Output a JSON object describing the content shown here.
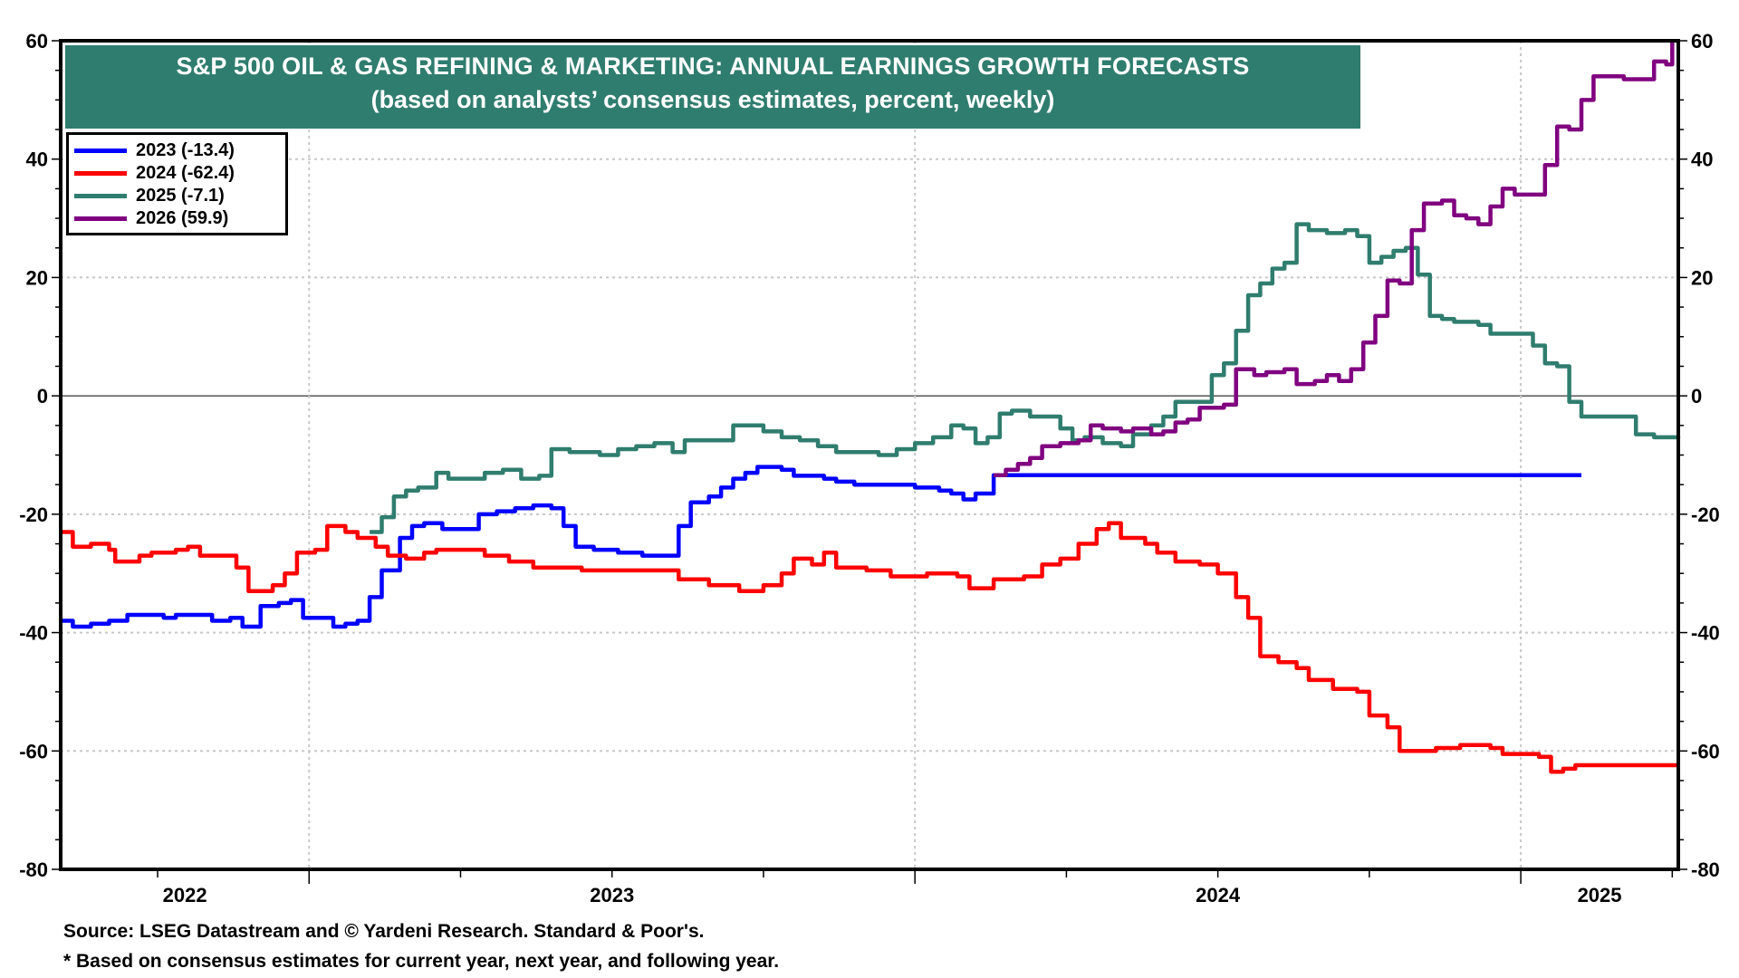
{
  "chart_data": {
    "type": "line",
    "title": "S&P 500 OIL & GAS REFINING & MARKETING: ANNUAL EARNINGS GROWTH FORECASTS",
    "subtitle": "(based on analysts’ consensus estimates, percent, weekly)",
    "xlabel": "",
    "ylabel": "",
    "ylim": [
      -80,
      60
    ],
    "yticks": [
      60,
      40,
      20,
      0,
      -20,
      -40,
      -60,
      -80
    ],
    "xlim": [
      2022.59,
      2025.26
    ],
    "xtick_labels": [
      {
        "label": "2022",
        "x": 2022.795
      },
      {
        "label": "2023",
        "x": 2023.5
      },
      {
        "label": "2024",
        "x": 2024.5
      },
      {
        "label": "2025",
        "x": 2025.13
      }
    ],
    "grid": true,
    "legend_position": "top-left",
    "series": [
      {
        "name": "2023 (-13.4)",
        "color": "#0000ff",
        "points": [
          [
            2022.59,
            -38
          ],
          [
            2022.61,
            -39
          ],
          [
            2022.64,
            -38.5
          ],
          [
            2022.67,
            -38
          ],
          [
            2022.7,
            -37
          ],
          [
            2022.74,
            -37
          ],
          [
            2022.76,
            -37.5
          ],
          [
            2022.78,
            -37
          ],
          [
            2022.82,
            -37
          ],
          [
            2022.84,
            -38
          ],
          [
            2022.87,
            -37.5
          ],
          [
            2022.89,
            -39
          ],
          [
            2022.92,
            -35.5
          ],
          [
            2022.95,
            -35
          ],
          [
            2022.97,
            -34.5
          ],
          [
            2022.99,
            -37.5
          ],
          [
            2023.03,
            -37.5
          ],
          [
            2023.04,
            -39
          ],
          [
            2023.06,
            -38.5
          ],
          [
            2023.08,
            -38
          ],
          [
            2023.1,
            -34
          ],
          [
            2023.12,
            -29.5
          ],
          [
            2023.15,
            -24
          ],
          [
            2023.17,
            -22
          ],
          [
            2023.19,
            -21.5
          ],
          [
            2023.22,
            -22.5
          ],
          [
            2023.26,
            -22.5
          ],
          [
            2023.28,
            -20
          ],
          [
            2023.31,
            -19.5
          ],
          [
            2023.34,
            -19
          ],
          [
            2023.37,
            -18.5
          ],
          [
            2023.4,
            -19
          ],
          [
            2023.42,
            -22
          ],
          [
            2023.44,
            -25.5
          ],
          [
            2023.47,
            -26
          ],
          [
            2023.51,
            -26.5
          ],
          [
            2023.55,
            -27
          ],
          [
            2023.59,
            -27
          ],
          [
            2023.61,
            -22
          ],
          [
            2023.63,
            -18
          ],
          [
            2023.66,
            -17
          ],
          [
            2023.68,
            -15.5
          ],
          [
            2023.7,
            -14
          ],
          [
            2023.72,
            -13
          ],
          [
            2023.74,
            -12
          ],
          [
            2023.78,
            -12.5
          ],
          [
            2023.8,
            -13.5
          ],
          [
            2023.85,
            -14
          ],
          [
            2023.87,
            -14.5
          ],
          [
            2023.9,
            -15
          ],
          [
            2023.96,
            -15
          ],
          [
            2024.0,
            -15.5
          ],
          [
            2024.04,
            -16
          ],
          [
            2024.06,
            -16.5
          ],
          [
            2024.08,
            -17.5
          ],
          [
            2024.1,
            -16.5
          ],
          [
            2024.13,
            -13.4
          ],
          [
            2024.95,
            -13.4
          ],
          [
            2025.1,
            -13.4
          ]
        ]
      },
      {
        "name": "2024 (-62.4)",
        "color": "#ff0000",
        "points": [
          [
            2022.59,
            -23
          ],
          [
            2022.61,
            -25.5
          ],
          [
            2022.64,
            -25
          ],
          [
            2022.67,
            -26
          ],
          [
            2022.68,
            -28
          ],
          [
            2022.72,
            -27
          ],
          [
            2022.74,
            -26.5
          ],
          [
            2022.78,
            -26
          ],
          [
            2022.8,
            -25.5
          ],
          [
            2022.82,
            -27
          ],
          [
            2022.86,
            -27
          ],
          [
            2022.88,
            -29
          ],
          [
            2022.9,
            -33
          ],
          [
            2022.94,
            -32
          ],
          [
            2022.96,
            -30
          ],
          [
            2022.98,
            -26.5
          ],
          [
            2023.01,
            -26
          ],
          [
            2023.03,
            -22
          ],
          [
            2023.06,
            -23
          ],
          [
            2023.08,
            -24
          ],
          [
            2023.11,
            -25.5
          ],
          [
            2023.13,
            -27
          ],
          [
            2023.16,
            -27.5
          ],
          [
            2023.19,
            -26.5
          ],
          [
            2023.21,
            -26
          ],
          [
            2023.26,
            -26
          ],
          [
            2023.29,
            -27
          ],
          [
            2023.33,
            -28
          ],
          [
            2023.37,
            -29
          ],
          [
            2023.41,
            -29
          ],
          [
            2023.45,
            -29.5
          ],
          [
            2023.5,
            -29.5
          ],
          [
            2023.56,
            -29.5
          ],
          [
            2023.61,
            -31
          ],
          [
            2023.66,
            -32
          ],
          [
            2023.71,
            -33
          ],
          [
            2023.75,
            -32
          ],
          [
            2023.78,
            -30
          ],
          [
            2023.8,
            -27.5
          ],
          [
            2023.83,
            -28.5
          ],
          [
            2023.85,
            -26.5
          ],
          [
            2023.87,
            -29
          ],
          [
            2023.92,
            -29.5
          ],
          [
            2023.96,
            -30.5
          ],
          [
            2024.02,
            -30
          ],
          [
            2024.07,
            -30.5
          ],
          [
            2024.09,
            -32.5
          ],
          [
            2024.13,
            -31
          ],
          [
            2024.18,
            -30.5
          ],
          [
            2024.21,
            -28.5
          ],
          [
            2024.24,
            -27.5
          ],
          [
            2024.27,
            -25
          ],
          [
            2024.3,
            -22.5
          ],
          [
            2024.32,
            -21.5
          ],
          [
            2024.34,
            -24
          ],
          [
            2024.38,
            -25
          ],
          [
            2024.4,
            -26.5
          ],
          [
            2024.43,
            -28
          ],
          [
            2024.47,
            -28.5
          ],
          [
            2024.5,
            -30
          ],
          [
            2024.53,
            -34
          ],
          [
            2024.55,
            -37.5
          ],
          [
            2024.57,
            -44
          ],
          [
            2024.6,
            -45
          ],
          [
            2024.63,
            -46
          ],
          [
            2024.65,
            -48
          ],
          [
            2024.69,
            -49.5
          ],
          [
            2024.73,
            -50
          ],
          [
            2024.75,
            -54
          ],
          [
            2024.78,
            -56
          ],
          [
            2024.8,
            -60
          ],
          [
            2024.86,
            -59.5
          ],
          [
            2024.9,
            -59
          ],
          [
            2024.95,
            -59.5
          ],
          [
            2024.97,
            -60.5
          ],
          [
            2025.03,
            -61
          ],
          [
            2025.05,
            -63.5
          ],
          [
            2025.07,
            -63
          ],
          [
            2025.09,
            -62.4
          ],
          [
            2025.26,
            -62.4
          ]
        ]
      },
      {
        "name": "2025 (-7.1)",
        "color": "#2f7d6f",
        "points": [
          [
            2023.1,
            -23
          ],
          [
            2023.12,
            -20.5
          ],
          [
            2023.14,
            -17
          ],
          [
            2023.16,
            -16
          ],
          [
            2023.18,
            -15.5
          ],
          [
            2023.21,
            -13
          ],
          [
            2023.23,
            -14
          ],
          [
            2023.27,
            -14
          ],
          [
            2023.29,
            -13
          ],
          [
            2023.32,
            -12.5
          ],
          [
            2023.35,
            -14
          ],
          [
            2023.38,
            -13.5
          ],
          [
            2023.4,
            -9
          ],
          [
            2023.43,
            -9.5
          ],
          [
            2023.48,
            -10
          ],
          [
            2023.51,
            -9
          ],
          [
            2023.54,
            -8.5
          ],
          [
            2023.57,
            -8
          ],
          [
            2023.6,
            -9.5
          ],
          [
            2023.62,
            -7.5
          ],
          [
            2023.68,
            -7.5
          ],
          [
            2023.7,
            -5
          ],
          [
            2023.73,
            -5
          ],
          [
            2023.75,
            -6
          ],
          [
            2023.78,
            -7
          ],
          [
            2023.81,
            -7.5
          ],
          [
            2023.84,
            -8.5
          ],
          [
            2023.87,
            -9.5
          ],
          [
            2023.91,
            -9.5
          ],
          [
            2023.94,
            -10
          ],
          [
            2023.97,
            -9
          ],
          [
            2024.0,
            -8
          ],
          [
            2024.03,
            -7
          ],
          [
            2024.06,
            -5
          ],
          [
            2024.08,
            -5.5
          ],
          [
            2024.1,
            -8
          ],
          [
            2024.12,
            -7
          ],
          [
            2024.14,
            -3
          ],
          [
            2024.16,
            -2.5
          ],
          [
            2024.19,
            -3.5
          ],
          [
            2024.22,
            -3.5
          ],
          [
            2024.24,
            -5.5
          ],
          [
            2024.26,
            -7.5
          ],
          [
            2024.28,
            -7
          ],
          [
            2024.31,
            -8
          ],
          [
            2024.34,
            -8.5
          ],
          [
            2024.36,
            -6.5
          ],
          [
            2024.39,
            -5
          ],
          [
            2024.41,
            -3.5
          ],
          [
            2024.43,
            -1
          ],
          [
            2024.47,
            -1
          ],
          [
            2024.49,
            3.5
          ],
          [
            2024.51,
            5.5
          ],
          [
            2024.53,
            11
          ],
          [
            2024.55,
            17
          ],
          [
            2024.57,
            19
          ],
          [
            2024.59,
            21.5
          ],
          [
            2024.61,
            22.5
          ],
          [
            2024.63,
            29
          ],
          [
            2024.65,
            28
          ],
          [
            2024.68,
            27.5
          ],
          [
            2024.71,
            28
          ],
          [
            2024.73,
            27
          ],
          [
            2024.75,
            22.5
          ],
          [
            2024.77,
            23.5
          ],
          [
            2024.79,
            24.5
          ],
          [
            2024.81,
            25
          ],
          [
            2024.83,
            20.5
          ],
          [
            2024.85,
            13.5
          ],
          [
            2024.87,
            13
          ],
          [
            2024.89,
            12.5
          ],
          [
            2024.91,
            12.5
          ],
          [
            2024.93,
            12
          ],
          [
            2024.95,
            10.5
          ],
          [
            2024.98,
            10.5
          ],
          [
            2025.0,
            10.5
          ],
          [
            2025.02,
            8.5
          ],
          [
            2025.04,
            5.5
          ],
          [
            2025.06,
            5
          ],
          [
            2025.08,
            -1
          ],
          [
            2025.1,
            -3.5
          ],
          [
            2025.16,
            -3.5
          ],
          [
            2025.19,
            -6.5
          ],
          [
            2025.22,
            -7
          ],
          [
            2025.26,
            -7.1
          ]
        ]
      },
      {
        "name": "2026 (59.9)",
        "color": "#800080",
        "points": [
          [
            2024.13,
            -13.4
          ],
          [
            2024.15,
            -12.5
          ],
          [
            2024.17,
            -11.5
          ],
          [
            2024.19,
            -10.5
          ],
          [
            2024.21,
            -8.5
          ],
          [
            2024.24,
            -8
          ],
          [
            2024.27,
            -7.5
          ],
          [
            2024.29,
            -5
          ],
          [
            2024.31,
            -5.5
          ],
          [
            2024.34,
            -6
          ],
          [
            2024.36,
            -5.5
          ],
          [
            2024.39,
            -6.5
          ],
          [
            2024.41,
            -6
          ],
          [
            2024.43,
            -4.5
          ],
          [
            2024.45,
            -4
          ],
          [
            2024.47,
            -2
          ],
          [
            2024.51,
            -1.5
          ],
          [
            2024.53,
            4.5
          ],
          [
            2024.56,
            3.5
          ],
          [
            2024.58,
            4
          ],
          [
            2024.61,
            4.5
          ],
          [
            2024.63,
            2
          ],
          [
            2024.66,
            2.5
          ],
          [
            2024.68,
            3.5
          ],
          [
            2024.7,
            2.5
          ],
          [
            2024.72,
            4.5
          ],
          [
            2024.74,
            9
          ],
          [
            2024.76,
            13.5
          ],
          [
            2024.78,
            19.5
          ],
          [
            2024.8,
            19
          ],
          [
            2024.82,
            28
          ],
          [
            2024.84,
            32.5
          ],
          [
            2024.87,
            33
          ],
          [
            2024.89,
            30.5
          ],
          [
            2024.91,
            30
          ],
          [
            2024.93,
            29
          ],
          [
            2024.95,
            32
          ],
          [
            2024.97,
            35
          ],
          [
            2024.99,
            34
          ],
          [
            2025.02,
            34
          ],
          [
            2025.04,
            39
          ],
          [
            2025.06,
            45.5
          ],
          [
            2025.08,
            45
          ],
          [
            2025.1,
            50
          ],
          [
            2025.12,
            54
          ],
          [
            2025.15,
            54
          ],
          [
            2025.17,
            53.5
          ],
          [
            2025.2,
            53.5
          ],
          [
            2025.22,
            56.5
          ],
          [
            2025.24,
            56
          ],
          [
            2025.25,
            59.9
          ]
        ]
      }
    ]
  },
  "legend": {
    "items": [
      {
        "label": "2023 (-13.4)",
        "color": "#0000ff"
      },
      {
        "label": "2024 (-62.4)",
        "color": "#ff0000"
      },
      {
        "label": "2025 (-7.1)",
        "color": "#2f7d6f"
      },
      {
        "label": "2026 (59.9)",
        "color": "#800080"
      }
    ]
  },
  "footer": {
    "source": "Source: LSEG Datastream and © Yardeni Research. Standard & Poor's.",
    "note": "* Based on consensus estimates for current year, next year, and following year."
  }
}
